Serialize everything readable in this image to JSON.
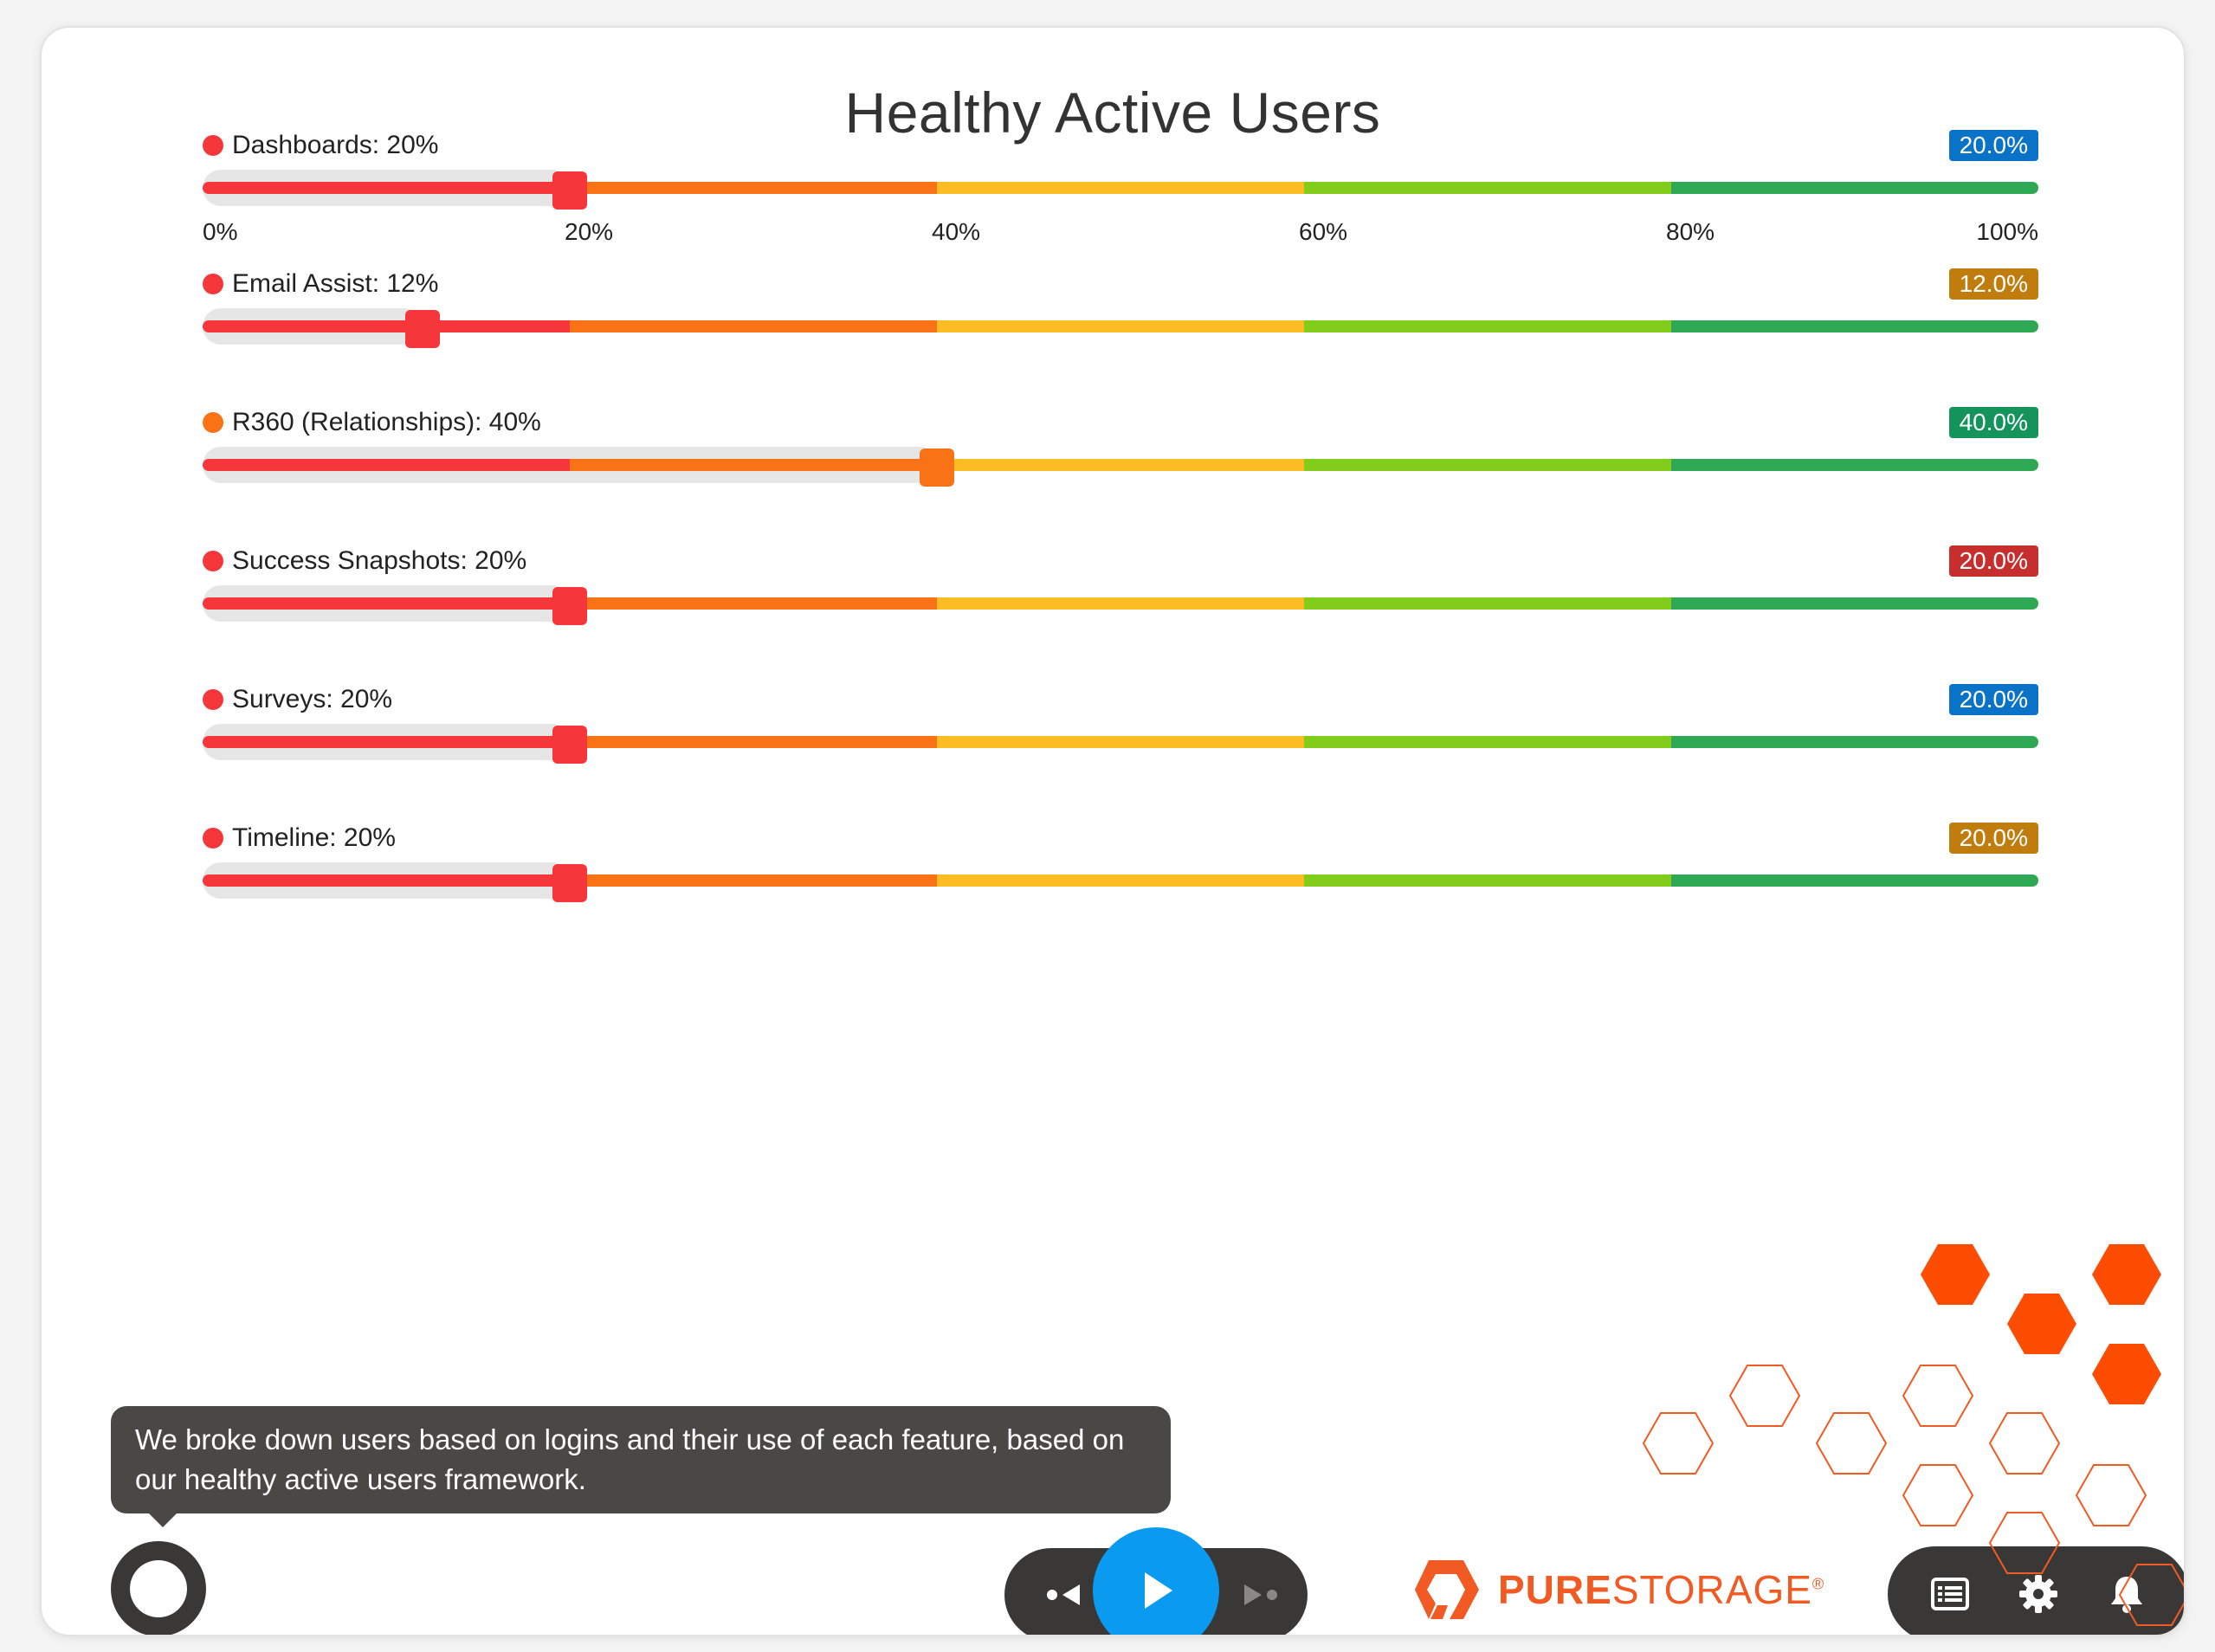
{
  "page": {
    "title": "Healthy Active Users"
  },
  "scale": {
    "segment_colors": [
      "#f5363b",
      "#f97316",
      "#fbbd23",
      "#82cc1a",
      "#2ea854"
    ],
    "ticks": [
      "0%",
      "20%",
      "40%",
      "60%",
      "80%",
      "100%"
    ]
  },
  "sliders": [
    {
      "label": "Dashboards: 20%",
      "value": 20,
      "badge": "20.0%",
      "badge_color": "#0a73c7",
      "dot_color": "#f5363b",
      "handle_color": "#f5363b"
    },
    {
      "label": "Email Assist: 12%",
      "value": 12,
      "badge": "12.0%",
      "badge_color": "#c17c0e",
      "dot_color": "#f5363b",
      "handle_color": "#f5363b"
    },
    {
      "label": "R360 (Relationships): 40%",
      "value": 40,
      "badge": "40.0%",
      "badge_color": "#14935b",
      "dot_color": "#f97316",
      "handle_color": "#f97316"
    },
    {
      "label": "Success Snapshots: 20%",
      "value": 20,
      "badge": "20.0%",
      "badge_color": "#c72f2f",
      "dot_color": "#f5363b",
      "handle_color": "#f5363b"
    },
    {
      "label": "Surveys: 20%",
      "value": 20,
      "badge": "20.0%",
      "badge_color": "#0a73c7",
      "dot_color": "#f5363b",
      "handle_color": "#f5363b"
    },
    {
      "label": "Timeline: 20%",
      "value": 20,
      "badge": "20.0%",
      "badge_color": "#c17c0e",
      "dot_color": "#f5363b",
      "handle_color": "#f5363b"
    }
  ],
  "caption": {
    "text": "We broke down users based on logins and their use of each feature, based on our healthy active users framework."
  },
  "player": {
    "prev_icon": "previous-icon",
    "play_icon": "play-icon",
    "next_icon": "next-icon"
  },
  "logo": {
    "bold": "PURE",
    "rest": "STORAGE",
    "mark": "®"
  },
  "toolbar": {
    "icons": [
      "list-icon",
      "gear-icon",
      "bell-icon"
    ]
  },
  "colors": {
    "accent": "#0a9aef",
    "brand": "#f15a22",
    "dark": "#3a3836"
  }
}
